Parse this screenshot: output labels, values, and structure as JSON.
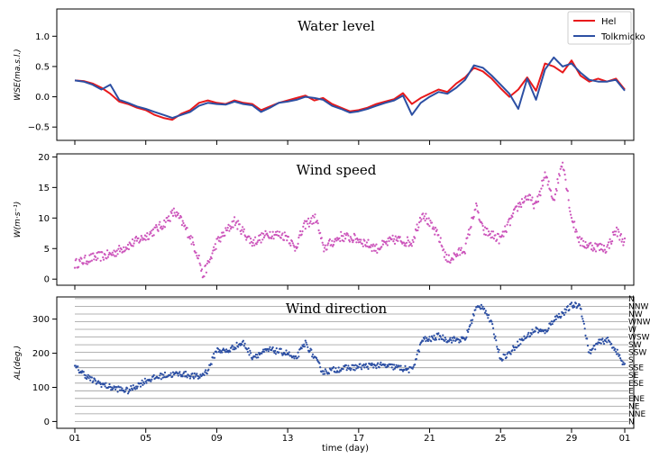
{
  "x_axis": {
    "label": "time (day)",
    "tick_labels": [
      "01",
      "05",
      "09",
      "13",
      "17",
      "21",
      "25",
      "29",
      "01"
    ],
    "range": [
      0,
      31
    ]
  },
  "chart_data": [
    {
      "type": "line",
      "title": "Water level",
      "ylabel": "WSE(ma.s.l.)",
      "ylim": [
        -0.72,
        1.45
      ],
      "yticks": [
        -0.5,
        0.0,
        0.5,
        1.0
      ],
      "ytick_labels": [
        "−0.5",
        "0.0",
        "0.5",
        "1.0"
      ],
      "legend": "top-right",
      "series": [
        {
          "name": "Hel",
          "color": "#e8191b",
          "x": [
            0,
            0.5,
            1,
            1.5,
            2,
            2.5,
            3,
            3.5,
            4,
            4.5,
            5,
            5.5,
            6,
            6.5,
            7,
            7.5,
            8,
            8.5,
            9,
            9.5,
            10,
            10.5,
            11,
            11.5,
            12,
            12.5,
            13,
            13.5,
            14,
            14.5,
            15,
            15.5,
            16,
            16.5,
            17,
            17.5,
            18,
            18.5,
            19,
            19.5,
            20,
            20.5,
            21,
            21.5,
            22,
            22.5,
            23,
            23.5,
            24,
            24.5,
            25,
            25.5,
            26,
            26.5,
            27,
            27.5,
            28,
            28.5,
            29,
            29.5,
            30,
            30.5,
            31
          ],
          "values": [
            0.27,
            0.26,
            0.22,
            0.15,
            0.05,
            -0.08,
            -0.12,
            -0.18,
            -0.22,
            -0.3,
            -0.35,
            -0.38,
            -0.28,
            -0.22,
            -0.1,
            -0.06,
            -0.1,
            -0.12,
            -0.06,
            -0.1,
            -0.12,
            -0.22,
            -0.16,
            -0.1,
            -0.06,
            -0.02,
            0.02,
            -0.06,
            -0.02,
            -0.12,
            -0.18,
            -0.24,
            -0.22,
            -0.18,
            -0.12,
            -0.08,
            -0.04,
            0.06,
            -0.12,
            -0.02,
            0.05,
            0.12,
            0.08,
            0.22,
            0.32,
            0.48,
            0.42,
            0.3,
            0.14,
            0.0,
            0.12,
            0.32,
            0.1,
            0.55,
            0.5,
            0.4,
            0.6,
            0.35,
            0.25,
            0.3,
            0.25,
            0.3,
            0.12
          ]
        },
        {
          "name": "Tolkmicko",
          "color": "#2c4fa3",
          "x": [
            0,
            0.5,
            1,
            1.5,
            2,
            2.5,
            3,
            3.5,
            4,
            4.5,
            5,
            5.5,
            6,
            6.5,
            7,
            7.5,
            8,
            8.5,
            9,
            9.5,
            10,
            10.5,
            11,
            11.5,
            12,
            12.5,
            13,
            13.5,
            14,
            14.5,
            15,
            15.5,
            16,
            16.5,
            17,
            17.5,
            18,
            18.5,
            19,
            19.5,
            20,
            20.5,
            21,
            21.5,
            22,
            22.5,
            23,
            23.5,
            24,
            24.5,
            25,
            25.5,
            26,
            26.5,
            27,
            27.5,
            28,
            28.5,
            29,
            29.5,
            30,
            30.5,
            31
          ],
          "values": [
            0.27,
            0.25,
            0.2,
            0.12,
            0.2,
            -0.05,
            -0.1,
            -0.16,
            -0.2,
            -0.25,
            -0.3,
            -0.35,
            -0.3,
            -0.25,
            -0.15,
            -0.1,
            -0.12,
            -0.13,
            -0.08,
            -0.12,
            -0.14,
            -0.25,
            -0.18,
            -0.1,
            -0.08,
            -0.05,
            0.0,
            -0.02,
            -0.05,
            -0.15,
            -0.2,
            -0.26,
            -0.24,
            -0.2,
            -0.15,
            -0.1,
            -0.06,
            0.02,
            -0.3,
            -0.1,
            0.0,
            0.08,
            0.05,
            0.15,
            0.28,
            0.52,
            0.48,
            0.35,
            0.2,
            0.05,
            -0.2,
            0.3,
            -0.05,
            0.45,
            0.65,
            0.5,
            0.55,
            0.4,
            0.28,
            0.25,
            0.25,
            0.28,
            0.1
          ]
        }
      ]
    },
    {
      "type": "scatter",
      "title": "Wind speed",
      "ylabel": "W(m·s⁻¹)",
      "ylim": [
        -1,
        20.5
      ],
      "yticks": [
        0,
        5,
        10,
        15,
        20
      ],
      "ytick_labels": [
        "0",
        "5",
        "10",
        "15",
        "20"
      ],
      "color": "#cc55bb",
      "key_points": {
        "x": [
          0,
          1,
          2,
          3,
          4,
          5,
          5.6,
          6,
          6.5,
          7,
          7.2,
          7.6,
          8,
          8.6,
          9,
          10,
          11,
          12,
          12.4,
          13,
          13.6,
          14,
          15,
          16,
          17,
          18,
          19,
          19.6,
          20,
          20.5,
          21,
          22,
          22.6,
          23,
          24,
          25,
          25.5,
          26,
          26.5,
          27,
          27.5,
          28,
          28.5,
          29,
          30,
          30.5,
          31
        ],
        "values": [
          2.5,
          3.5,
          4,
          5.5,
          7,
          9,
          11,
          9.5,
          7,
          3.5,
          0.5,
          3,
          6,
          8,
          9.5,
          6,
          7.5,
          7,
          5,
          9,
          10,
          5,
          7,
          6.5,
          5,
          6.5,
          6,
          11,
          9,
          7,
          3,
          5,
          12,
          8,
          6.5,
          12,
          13.5,
          12,
          17,
          13,
          19.5,
          10,
          6,
          5.5,
          5,
          8,
          6
        ]
      }
    },
    {
      "type": "scatter",
      "title": "Wind direction",
      "ylabel": "AL(deg.)",
      "ylim": [
        -20,
        365
      ],
      "yticks": [
        0,
        100,
        200,
        300
      ],
      "ytick_labels": [
        "0",
        "100",
        "200",
        "300"
      ],
      "color": "#2c4fa3",
      "direction_labels": [
        "N",
        "NNE",
        "NE",
        "ENE",
        "E",
        "ESE",
        "SE",
        "SSE",
        "S",
        "SSW",
        "SW",
        "WSW",
        "W",
        "WNW",
        "NW",
        "NNW",
        "N"
      ],
      "key_points": {
        "x": [
          0,
          1,
          2,
          3,
          4,
          5,
          6,
          7,
          7.5,
          8,
          8.6,
          9,
          9.5,
          10,
          11,
          12,
          12.4,
          13,
          14,
          15,
          16,
          17,
          18,
          19,
          19.6,
          20,
          20.5,
          21,
          22,
          22.6,
          23,
          23.5,
          24,
          24.5,
          25,
          26,
          26.5,
          27,
          27.6,
          28,
          28.5,
          29,
          29.5,
          30,
          30.5,
          31
        ],
        "values": [
          160,
          120,
          100,
          90,
          120,
          135,
          140,
          130,
          150,
          210,
          205,
          220,
          230,
          190,
          210,
          200,
          180,
          230,
          145,
          155,
          160,
          165,
          160,
          150,
          240,
          240,
          250,
          240,
          240,
          330,
          340,
          285,
          185,
          200,
          230,
          270,
          260,
          300,
          320,
          340,
          340,
          200,
          230,
          240,
          210,
          160
        ]
      }
    }
  ]
}
